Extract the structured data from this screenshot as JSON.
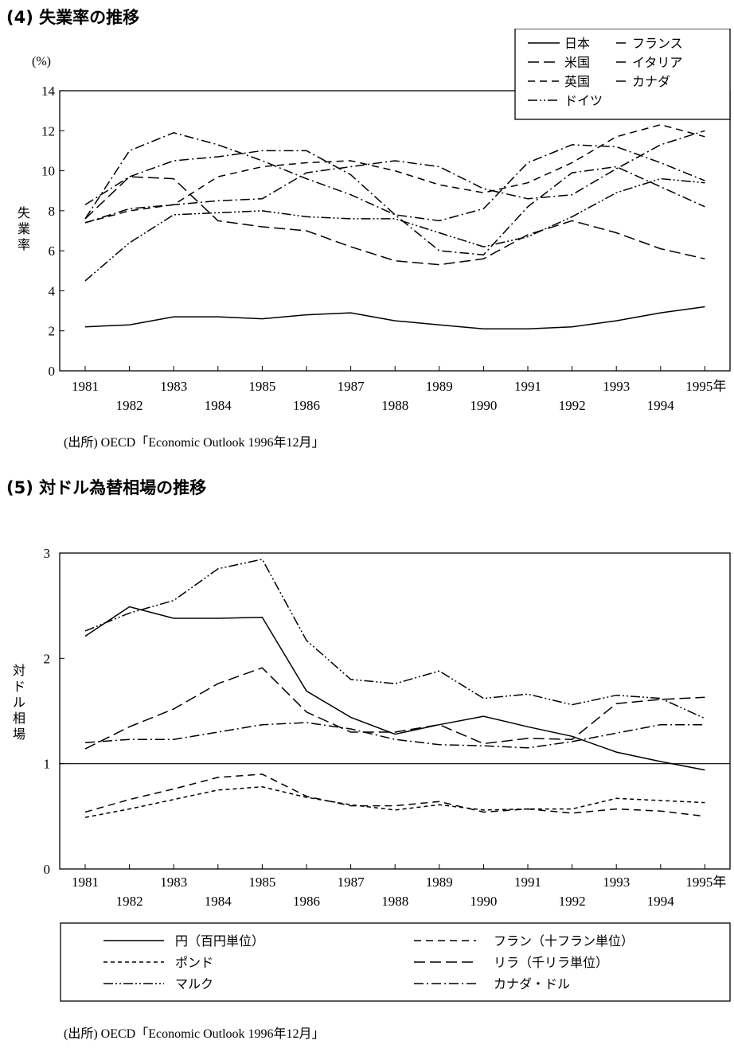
{
  "sections": [
    {
      "heading": "(4) 失業率の推移",
      "source": "(出所)  OECD「Economic Outlook 1996年12月」"
    },
    {
      "heading": "(5) 対ドル為替相場の推移",
      "source": "(出所)  OECD「Economic Outlook 1996年12月」"
    }
  ],
  "chart_data": [
    {
      "type": "line",
      "title": "",
      "ylabel": "失業率",
      "yunit": "(%)",
      "xlabel": "",
      "ylim": [
        0,
        14
      ],
      "yticks": [
        "0",
        "2",
        "4",
        "6",
        "8",
        "10",
        "12",
        "14"
      ],
      "x": [
        "1981",
        "1982",
        "1983",
        "1984",
        "1985",
        "1986",
        "1987",
        "1988",
        "1989",
        "1990",
        "1991",
        "1992",
        "1993",
        "1994",
        "1995年"
      ],
      "grid": false,
      "legend_position": "top-right",
      "series": [
        {
          "name": "日本",
          "dash": "solid",
          "values": [
            2.2,
            2.3,
            2.7,
            2.7,
            2.6,
            2.8,
            2.9,
            2.5,
            2.3,
            2.1,
            2.1,
            2.2,
            2.5,
            2.9,
            3.2
          ]
        },
        {
          "name": "米国",
          "dash": "longdash",
          "values": [
            7.6,
            9.7,
            9.6,
            7.5,
            7.2,
            7.0,
            6.2,
            5.5,
            5.3,
            5.6,
            6.8,
            7.5,
            6.9,
            6.1,
            5.6
          ]
        },
        {
          "name": "英国",
          "dash": "dash",
          "values": [
            7.4,
            8.0,
            8.3,
            9.7,
            10.2,
            10.4,
            10.5,
            10.0,
            9.3,
            8.9,
            9.4,
            10.4,
            11.7,
            12.3,
            11.7
          ]
        },
        {
          "name": "ドイツ",
          "dash": "dashdotdot",
          "values": [
            4.5,
            6.4,
            7.8,
            7.9,
            8.0,
            7.7,
            7.6,
            7.6,
            6.9,
            6.2,
            6.7,
            7.7,
            8.9,
            9.6,
            9.4
          ]
        },
        {
          "name": "フランス",
          "dash": "dashdot",
          "values": [
            7.4,
            8.1,
            8.3,
            8.5,
            8.6,
            9.9,
            10.2,
            10.5,
            10.2,
            9.1,
            8.6,
            8.8,
            10.1,
            11.3,
            12.0
          ]
        },
        {
          "name": "イタリア",
          "dash": "dashdot",
          "values": [
            8.3,
            9.7,
            10.5,
            10.7,
            11.0,
            11.0,
            9.8,
            7.8,
            6.0,
            5.8,
            8.2,
            9.9,
            10.2,
            9.2,
            8.2
          ]
        },
        {
          "name": "カナダ",
          "dash": "dashdot",
          "values": [
            7.6,
            11.0,
            11.9,
            11.3,
            10.5,
            9.6,
            8.8,
            7.8,
            7.5,
            8.1,
            10.4,
            11.3,
            11.2,
            10.4,
            9.5
          ]
        }
      ]
    },
    {
      "type": "line",
      "title": "",
      "ylabel": "対ドル相場",
      "xlabel": "",
      "ylim": [
        0,
        3
      ],
      "yticks": [
        "0",
        "1",
        "2",
        "3"
      ],
      "x": [
        "1981",
        "1982",
        "1983",
        "1984",
        "1985",
        "1986",
        "1987",
        "1988",
        "1989",
        "1990",
        "1991",
        "1992",
        "1993",
        "1994",
        "1995年"
      ],
      "grid": false,
      "reference_line": 1,
      "legend_position": "bottom",
      "series": [
        {
          "name": "円（百円単位）",
          "dash": "solid",
          "values": [
            2.21,
            2.49,
            2.38,
            2.38,
            2.39,
            1.69,
            1.44,
            1.28,
            1.37,
            1.45,
            1.35,
            1.26,
            1.11,
            1.02,
            0.94
          ]
        },
        {
          "name": "ポンド",
          "dash": "shortdash",
          "values": [
            0.49,
            0.57,
            0.66,
            0.75,
            0.78,
            0.68,
            0.61,
            0.56,
            0.61,
            0.56,
            0.57,
            0.57,
            0.67,
            0.65,
            0.63
          ]
        },
        {
          "name": "マルク",
          "dash": "dashdotdot",
          "values": [
            2.26,
            2.43,
            2.55,
            2.85,
            2.94,
            2.17,
            1.8,
            1.76,
            1.88,
            1.62,
            1.66,
            1.56,
            1.65,
            1.62,
            1.43
          ]
        },
        {
          "name": "フラン（十フラン単位）",
          "dash": "dash",
          "values": [
            0.54,
            0.66,
            0.76,
            0.87,
            0.9,
            0.69,
            0.6,
            0.6,
            0.64,
            0.54,
            0.57,
            0.53,
            0.57,
            0.55,
            0.5
          ]
        },
        {
          "name": "リラ（千リラ単位）",
          "dash": "longdash",
          "values": [
            1.14,
            1.35,
            1.52,
            1.76,
            1.91,
            1.49,
            1.3,
            1.3,
            1.37,
            1.19,
            1.24,
            1.23,
            1.57,
            1.61,
            1.63
          ]
        },
        {
          "name": "カナダ・ドル",
          "dash": "dashdot",
          "values": [
            1.2,
            1.23,
            1.23,
            1.3,
            1.37,
            1.39,
            1.33,
            1.23,
            1.18,
            1.17,
            1.15,
            1.21,
            1.29,
            1.37,
            1.37
          ]
        }
      ]
    }
  ]
}
